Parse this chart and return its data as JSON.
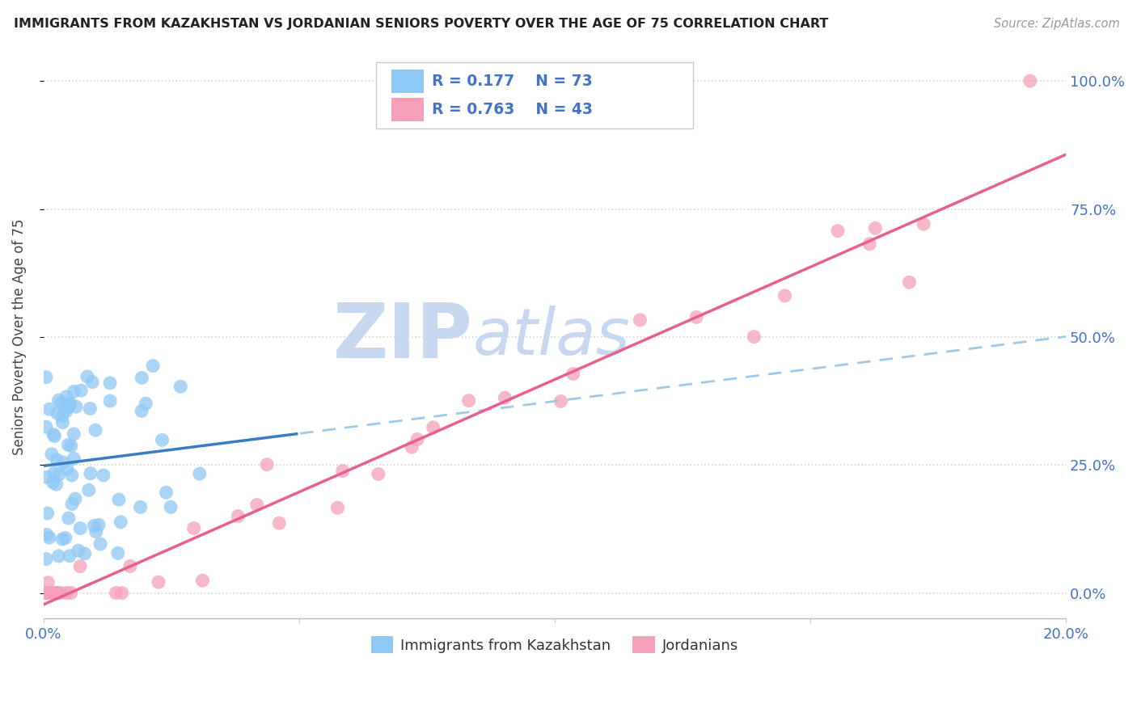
{
  "title": "IMMIGRANTS FROM KAZAKHSTAN VS JORDANIAN SENIORS POVERTY OVER THE AGE OF 75 CORRELATION CHART",
  "source": "Source: ZipAtlas.com",
  "ylabel": "Seniors Poverty Over the Age of 75",
  "y_tick_labels_right": [
    "0.0%",
    "25.0%",
    "50.0%",
    "75.0%",
    "100.0%"
  ],
  "y_tick_values": [
    0.0,
    0.25,
    0.5,
    0.75,
    1.0
  ],
  "x_tick_labels": [
    "0.0%",
    "",
    "",
    "",
    "20.0%"
  ],
  "x_tick_values": [
    0.0,
    0.05,
    0.1,
    0.15,
    0.2
  ],
  "x_range": [
    0.0,
    0.2
  ],
  "y_range": [
    -0.05,
    1.05
  ],
  "legend_r1": "R = 0.177",
  "legend_n1": "N = 73",
  "legend_r2": "R = 0.763",
  "legend_n2": "N = 43",
  "color_kaz": "#8ec8f5",
  "color_jor": "#f5a0b8",
  "color_kaz_line_solid": "#3a7cc2",
  "color_kaz_line_dash": "#a0c8e8",
  "color_jor_line": "#e86090",
  "watermark_zip": "ZIP",
  "watermark_atlas": "atlas",
  "watermark_color": "#c8d8f0",
  "background_color": "#ffffff",
  "grid_color": "#e8e8e8",
  "legend_text_color": "#4472c4",
  "axis_label_color": "#4472c4",
  "title_color": "#222222",
  "source_color": "#999999"
}
